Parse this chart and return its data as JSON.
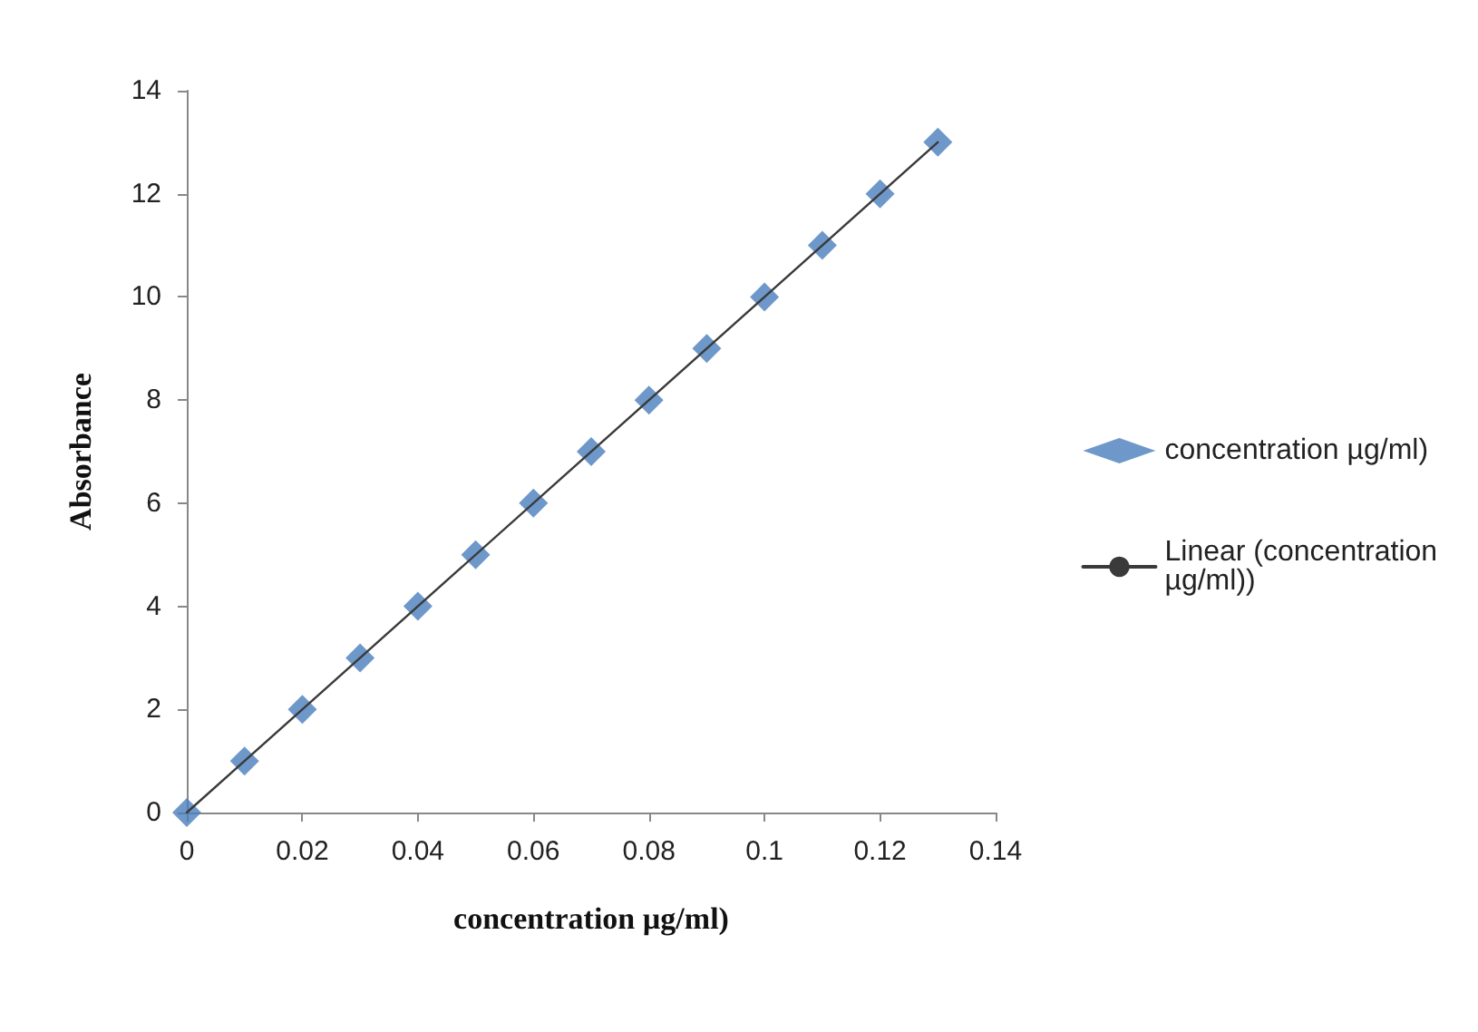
{
  "chart_data": {
    "type": "scatter",
    "xlabel": "concentration µg/ml)",
    "ylabel": "Absorbance",
    "x": [
      0,
      0.01,
      0.02,
      0.03,
      0.04,
      0.05,
      0.06,
      0.07,
      0.08,
      0.09,
      0.1,
      0.11,
      0.12,
      0.13
    ],
    "series": [
      {
        "name": "concentration µg/ml)",
        "color": "#4a7ebb",
        "values": [
          0,
          1,
          2,
          3,
          4,
          5,
          6,
          7,
          8,
          9,
          10,
          11,
          12,
          13
        ]
      },
      {
        "name": "Linear (concentration µg/ml))",
        "type": "line",
        "color": "#3a3a3a",
        "x": [
          0,
          0.13
        ],
        "values": [
          0,
          13
        ],
        "marker": "none",
        "line_style": "solid"
      }
    ],
    "marker": "diamond",
    "xlim": [
      0,
      0.14
    ],
    "xticks": [
      0,
      0.02,
      0.04,
      0.06,
      0.08,
      0.1,
      0.12,
      0.14
    ],
    "ylim": [
      0,
      14
    ],
    "yticks": [
      0,
      2,
      4,
      6,
      8,
      10,
      12,
      14
    ],
    "grid": false,
    "legend": "right"
  }
}
